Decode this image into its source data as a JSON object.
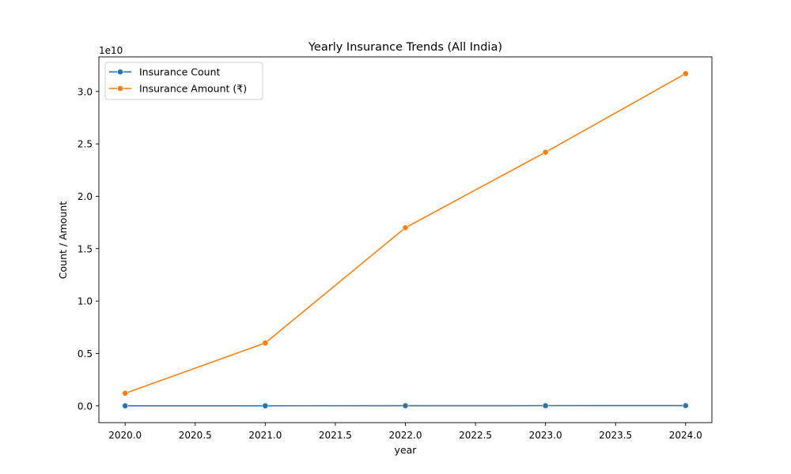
{
  "chart_data": {
    "type": "line",
    "title": "Yearly Insurance Trends (All India)",
    "xlabel": "year",
    "ylabel": "Count / Amount",
    "y_offset_label": "1e10",
    "xlim": [
      2019.8125,
      2024.1875
    ],
    "ylim": [
      -0.16,
      3.33
    ],
    "x_ticks": [
      2020.0,
      2020.5,
      2021.0,
      2021.5,
      2022.0,
      2022.5,
      2023.0,
      2023.5,
      2024.0
    ],
    "x_tick_labels": [
      "2020.0",
      "2020.5",
      "2021.0",
      "2021.5",
      "2022.0",
      "2022.5",
      "2023.0",
      "2023.5",
      "2024.0"
    ],
    "y_ticks": [
      0.0,
      0.5,
      1.0,
      1.5,
      2.0,
      2.5,
      3.0
    ],
    "y_tick_labels": [
      "0.0",
      "0.5",
      "1.0",
      "1.5",
      "2.0",
      "2.5",
      "3.0"
    ],
    "grid": false,
    "legend_position": "top-left",
    "x": [
      2020,
      2021,
      2022,
      2023,
      2024
    ],
    "series": [
      {
        "name": "Insurance Count",
        "color": "#1f77b4",
        "values": [
          0.0005,
          0.001,
          0.0015,
          0.002,
          0.0025
        ]
      },
      {
        "name": "Insurance Amount (₹)",
        "color": "#ff7f0e",
        "values": [
          0.12,
          0.6,
          1.7,
          2.42,
          3.17
        ]
      }
    ]
  }
}
